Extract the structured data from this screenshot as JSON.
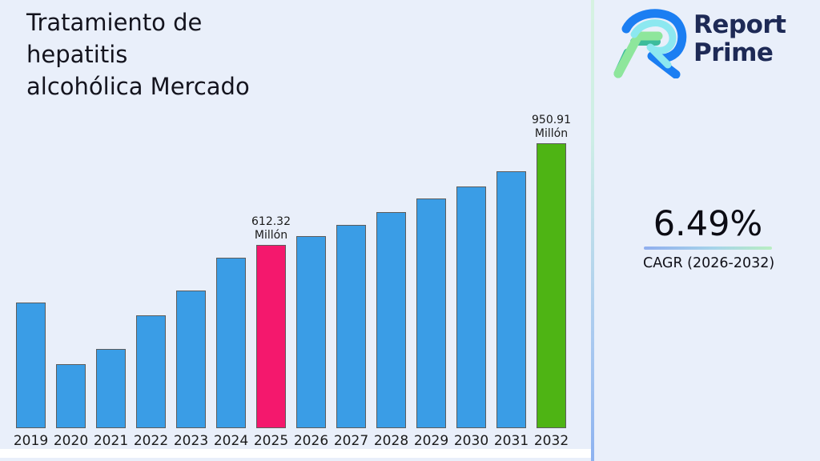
{
  "title": "Tratamiento de\nhepatitis\nalcohólica Mercado",
  "logo": {
    "line1": "Report",
    "line2": "Prime"
  },
  "cagr": {
    "value": "6.49%",
    "label": "CAGR (2026-2032)"
  },
  "chart_data": {
    "type": "bar",
    "title": "Tratamiento de hepatitis alcohólica Mercado",
    "xlabel": "",
    "ylabel": "",
    "unit": "Millón",
    "categories": [
      "2019",
      "2020",
      "2021",
      "2022",
      "2023",
      "2024",
      "2025",
      "2026",
      "2027",
      "2028",
      "2029",
      "2030",
      "2031",
      "2032"
    ],
    "values": [
      420,
      213,
      264,
      377,
      460,
      570,
      612.32,
      640,
      678,
      721,
      767,
      807,
      858,
      950.91
    ],
    "ylim": [
      0,
      960
    ],
    "grid": false,
    "legend": "none",
    "bar_color_default": "#3a9de6",
    "bar_colors": {
      "2025": "#f4186d",
      "2032": "#4eb414"
    },
    "bar_border_color": "#5c5c5c",
    "annotations": [
      {
        "category": "2025",
        "lines": "612.32\nMillón"
      },
      {
        "category": "2032",
        "lines": "950.91\nMillón"
      }
    ]
  },
  "colors": {
    "background": "#e9effa",
    "divider_top": "#d6f2e1",
    "divider_bottom": "#8db2f0",
    "logo_text": "#1e2a56"
  }
}
